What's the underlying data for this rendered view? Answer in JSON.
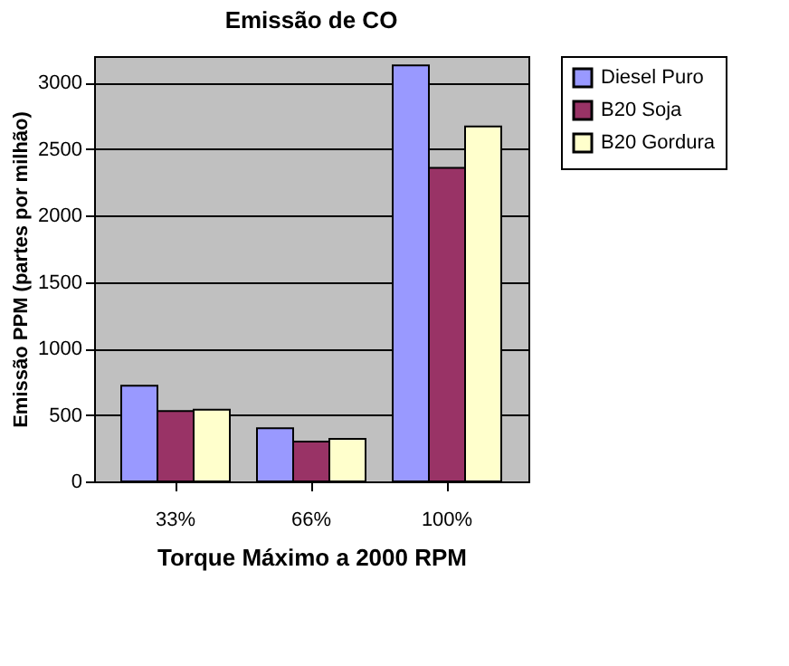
{
  "chart_data": {
    "type": "bar",
    "title": "Emissão de CO",
    "xlabel": "Torque Máximo a 2000 RPM",
    "ylabel": "Emissão  PPM (partes por milhão)",
    "categories": [
      "33%",
      "66%",
      "100%"
    ],
    "series": [
      {
        "name": "Diesel Puro",
        "color": "#9999ff",
        "values": [
          720,
          400,
          3130
        ]
      },
      {
        "name": "B20 Soja",
        "color": "#993366",
        "values": [
          530,
          300,
          2360
        ]
      },
      {
        "name": "B20 Gordura",
        "color": "#ffffcc",
        "values": [
          540,
          320,
          2670
        ]
      }
    ],
    "ylim": [
      0,
      3200
    ],
    "yticks": [
      0,
      500,
      1000,
      1500,
      2000,
      2500,
      3000
    ],
    "grid": "y",
    "legend": "right"
  }
}
